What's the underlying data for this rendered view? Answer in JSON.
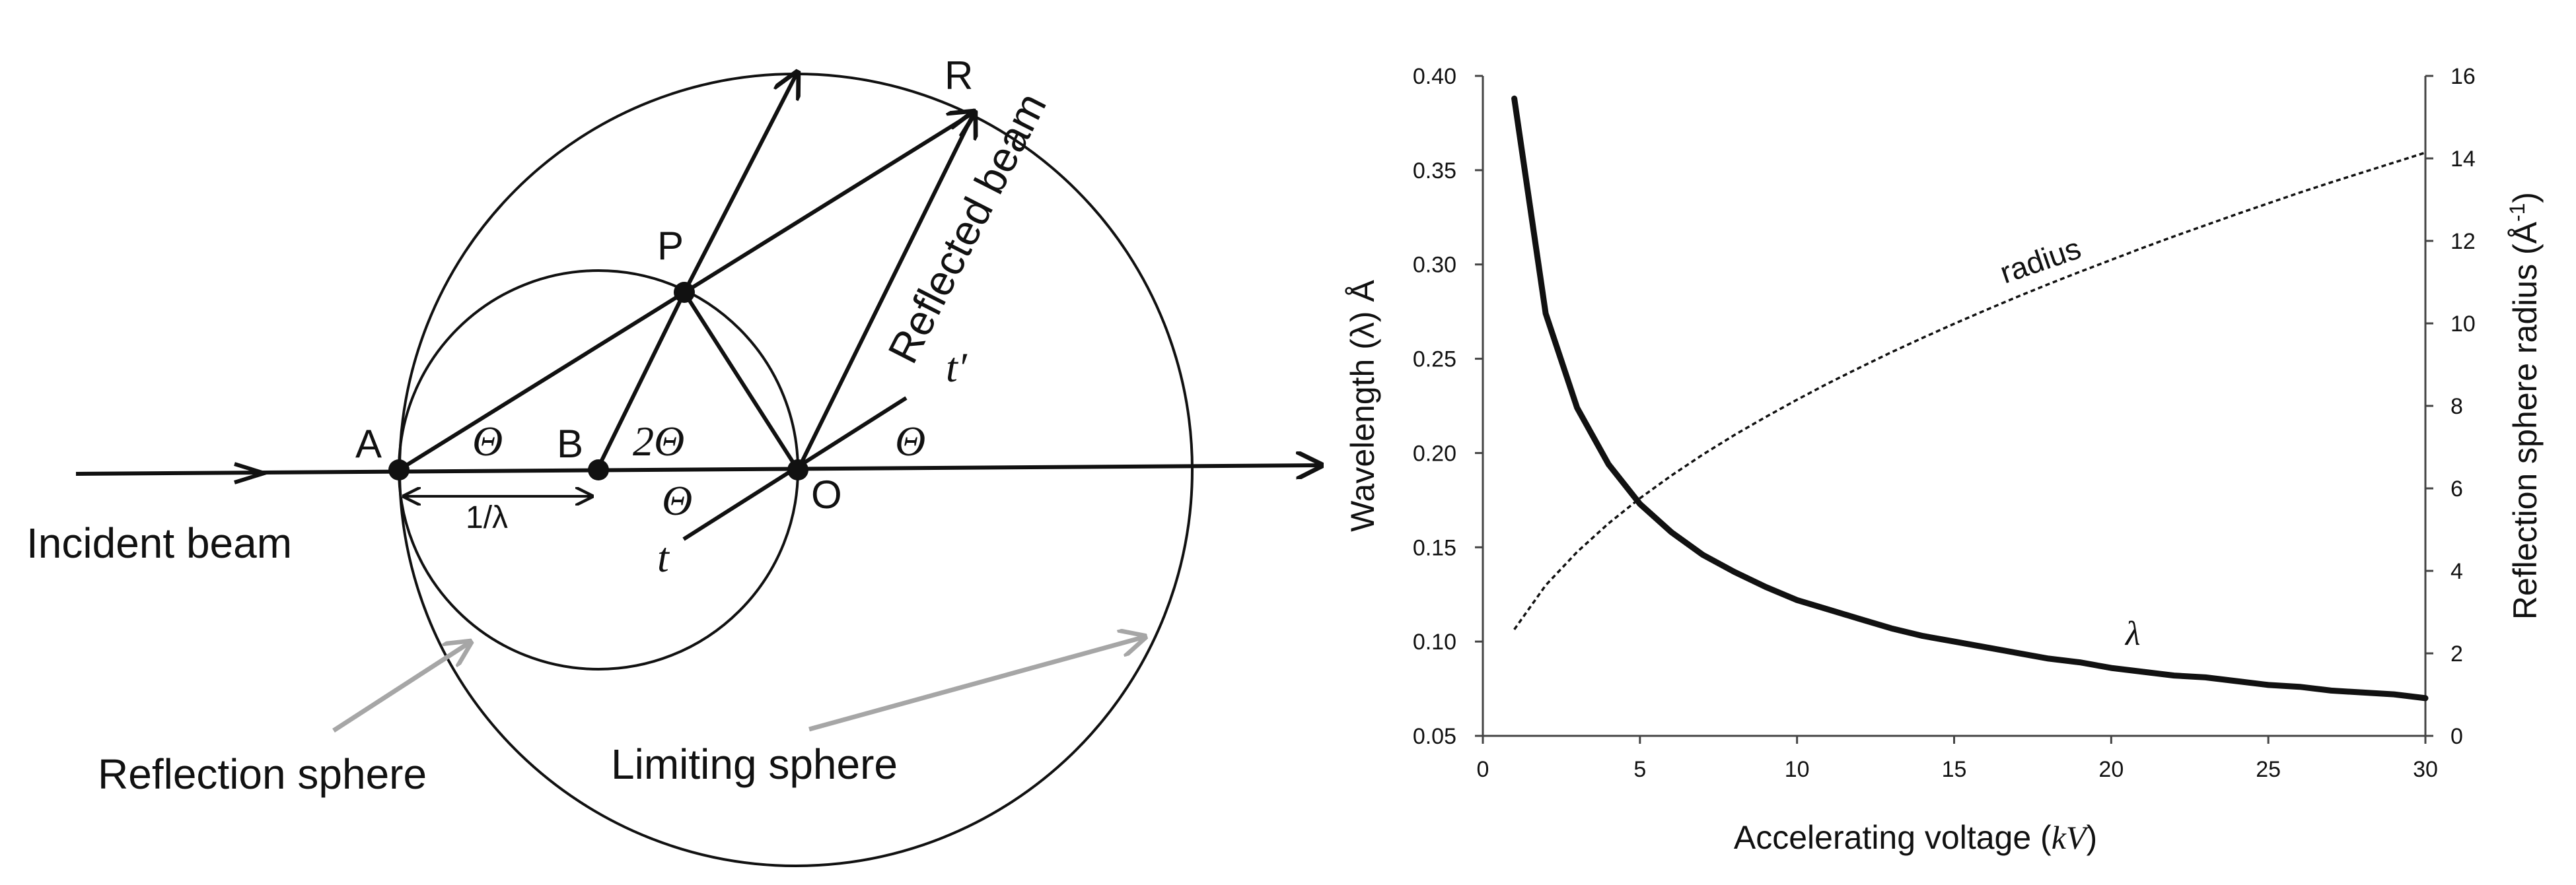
{
  "diagram": {
    "points": {
      "A": "A",
      "B": "B",
      "P": "P",
      "O": "O",
      "R": "R"
    },
    "angles": {
      "theta": "Θ",
      "two_theta": "2Θ"
    },
    "tangent": {
      "t": "t",
      "t_prime": "t′"
    },
    "inv_wavelength": "1/λ",
    "labels": {
      "incident_beam": "Incident beam",
      "reflected_beam": "Reflected beam",
      "reflection_sphere": "Reflection sphere",
      "limiting_sphere": "Limiting sphere"
    },
    "colors": {
      "line": "#111111",
      "pointer": "#a6a6a6"
    }
  },
  "chart_data": {
    "type": "line",
    "xlabel_main": "Accelerating voltage (",
    "xlabel_unit": "kV",
    "xlabel_end": ")",
    "ylabel": "Wavelength (λ) Å",
    "y2label_main": "Reflection sphere radius (Å",
    "y2label_sup": "-1",
    "y2label_end": ")",
    "xlim": [
      0,
      30
    ],
    "ylim": [
      0.05,
      0.4
    ],
    "y2lim": [
      0,
      16
    ],
    "x_ticks": [
      "0",
      "5",
      "10",
      "15",
      "20",
      "25",
      "30"
    ],
    "y_ticks": [
      "0.05",
      "0.10",
      "0.15",
      "0.20",
      "0.25",
      "0.30",
      "0.35",
      "0.40"
    ],
    "y2_ticks": [
      "0",
      "2",
      "4",
      "6",
      "8",
      "10",
      "12",
      "14",
      "16"
    ],
    "grid": false,
    "series": [
      {
        "name": "λ",
        "axis": "left",
        "style": "solid",
        "x": [
          1,
          2,
          3,
          4,
          5,
          6,
          7,
          8,
          9,
          10,
          11,
          12,
          13,
          14,
          15,
          16,
          17,
          18,
          19,
          20,
          21,
          22,
          23,
          24,
          25,
          26,
          27,
          28,
          29,
          30
        ],
        "values": [
          0.388,
          0.274,
          0.224,
          0.194,
          0.173,
          0.158,
          0.146,
          0.137,
          0.129,
          0.122,
          0.117,
          0.112,
          0.107,
          0.103,
          0.1,
          0.097,
          0.094,
          0.091,
          0.089,
          0.086,
          0.084,
          0.082,
          0.081,
          0.079,
          0.077,
          0.076,
          0.074,
          0.073,
          0.072,
          0.07
        ]
      },
      {
        "name": "radius",
        "axis": "right",
        "style": "dashed",
        "x": [
          1,
          2,
          3,
          4,
          5,
          6,
          7,
          8,
          9,
          10,
          11,
          12,
          13,
          14,
          15,
          16,
          17,
          18,
          19,
          20,
          21,
          22,
          23,
          24,
          25,
          26,
          27,
          28,
          29,
          30
        ],
        "values": [
          2.58,
          3.65,
          4.46,
          5.15,
          5.76,
          6.31,
          6.82,
          7.29,
          7.73,
          8.15,
          8.55,
          8.93,
          9.3,
          9.65,
          9.99,
          10.32,
          10.64,
          10.95,
          11.25,
          11.54,
          11.83,
          12.11,
          12.38,
          12.65,
          12.91,
          13.17,
          13.42,
          13.66,
          13.9,
          14.14
        ]
      }
    ]
  }
}
